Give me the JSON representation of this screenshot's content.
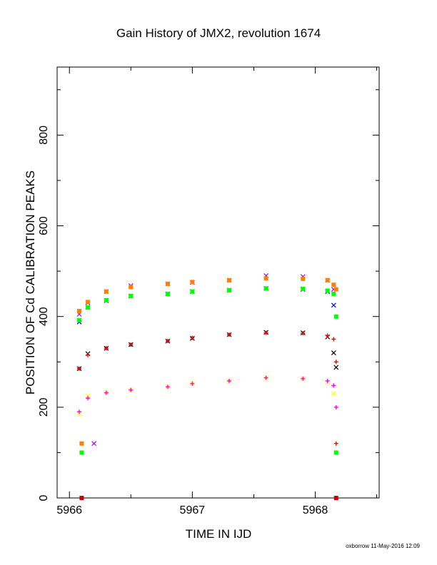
{
  "chart_data": {
    "type": "scatter",
    "title": "Gain History of JMX2, revolution 1674",
    "xlabel": "TIME IN IJD",
    "ylabel": "POSITION OF Cd CALIBRATION PEAKS",
    "credit": "oxborrow 11-May-2016 12:09",
    "xlim": [
      5965.9,
      5968.52
    ],
    "ylim": [
      0,
      950
    ],
    "x_ticks": [
      5966,
      5967,
      5968
    ],
    "x_tick_labels": [
      "5966",
      "5967",
      "5968"
    ],
    "y_ticks": [
      0,
      200,
      400,
      600,
      800
    ],
    "y_tick_labels": [
      "0",
      "200",
      "400",
      "600",
      "800"
    ],
    "grid": false,
    "legend": "none",
    "series": [
      {
        "color": "#ffff00",
        "marker": "x",
        "x": [
          5966.08,
          5966.15,
          5966.3,
          5966.5,
          5966.8,
          5967.0,
          5967.3,
          5967.6,
          5967.9,
          5968.1,
          5968.15
        ],
        "y": [
          185,
          225,
          232,
          238,
          245,
          252,
          258,
          265,
          263,
          255,
          230
        ]
      },
      {
        "color": "#ff00ff",
        "marker": "+",
        "x": [
          5966.08,
          5966.15,
          5966.3,
          5966.5,
          5966.8,
          5967.0,
          5967.3,
          5967.6,
          5967.9,
          5968.1,
          5968.15,
          5968.17
        ],
        "y": [
          190,
          220,
          232,
          238,
          245,
          252,
          258,
          265,
          263,
          258,
          248,
          200
        ]
      },
      {
        "color": "#000000",
        "marker": "x",
        "x": [
          5966.08,
          5966.15,
          5966.3,
          5966.5,
          5966.8,
          5967.0,
          5967.3,
          5967.6,
          5967.9,
          5968.1,
          5968.15,
          5968.17
        ],
        "y": [
          285,
          318,
          330,
          338,
          346,
          352,
          360,
          365,
          364,
          355,
          320,
          288
        ]
      },
      {
        "color": "#ff0000",
        "marker": "+",
        "x": [
          5966.08,
          5966.15,
          5966.3,
          5966.5,
          5966.8,
          5967.0,
          5967.3,
          5967.6,
          5967.9,
          5968.1,
          5968.15,
          5968.17,
          5968.17
        ],
        "y": [
          285,
          315,
          330,
          338,
          346,
          353,
          360,
          364,
          363,
          358,
          350,
          300,
          120
        ]
      },
      {
        "color": "#0000ff",
        "marker": "x",
        "x": [
          5966.08,
          5966.15,
          5966.3,
          5966.5,
          5966.8,
          5967.0,
          5967.3,
          5967.6,
          5967.9,
          5968.1,
          5968.15
        ],
        "y": [
          388,
          420,
          435,
          445,
          450,
          455,
          458,
          462,
          460,
          455,
          425
        ]
      },
      {
        "color": "#00ff00",
        "marker": "square",
        "x": [
          5966.08,
          5966.15,
          5966.3,
          5966.5,
          5966.8,
          5967.0,
          5967.3,
          5967.6,
          5967.9,
          5968.1,
          5968.15,
          5968.17,
          5966.1,
          5968.17
        ],
        "y": [
          392,
          420,
          436,
          445,
          450,
          455,
          458,
          462,
          461,
          457,
          450,
          400,
          100,
          100
        ]
      },
      {
        "color": "#aa00ff",
        "marker": "x",
        "x": [
          5966.08,
          5966.15,
          5966.3,
          5966.5,
          5966.8,
          5967.0,
          5967.3,
          5967.6,
          5967.9,
          5968.1,
          5968.15,
          5966.2
        ],
        "y": [
          405,
          430,
          455,
          468,
          472,
          475,
          480,
          490,
          488,
          480,
          460,
          120
        ]
      },
      {
        "color": "#ff8000",
        "marker": "square",
        "x": [
          5966.08,
          5966.15,
          5966.3,
          5966.5,
          5966.8,
          5967.0,
          5967.3,
          5967.6,
          5967.9,
          5968.1,
          5968.15,
          5968.17,
          5966.1
        ],
        "y": [
          412,
          432,
          455,
          465,
          472,
          476,
          480,
          484,
          483,
          480,
          470,
          460,
          120
        ]
      },
      {
        "color": "#cc0000",
        "marker": "square",
        "x": [
          5966.1,
          5968.17
        ],
        "y": [
          0,
          0
        ]
      }
    ]
  }
}
